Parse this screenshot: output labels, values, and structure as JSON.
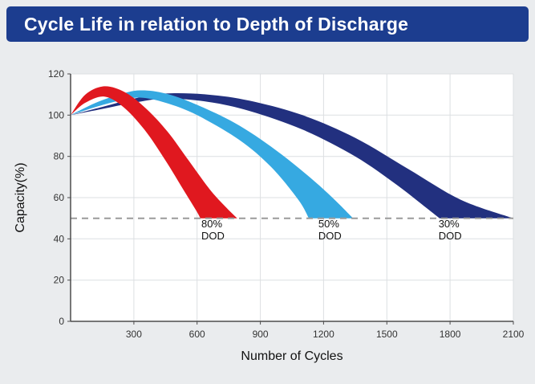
{
  "header": {
    "title": "Cycle Life in relation to Depth of Discharge",
    "bg_color": "#1c3d8f",
    "text_color": "#ffffff"
  },
  "page": {
    "bg_color": "#eaecee"
  },
  "chart_data": {
    "type": "area",
    "title": "Cycle Life in relation to Depth of Discharge",
    "xlabel": "Number of Cycles",
    "ylabel": "Capacity(%)",
    "xlim": [
      0,
      2100
    ],
    "ylim": [
      0,
      120
    ],
    "xticks": [
      300,
      600,
      900,
      1200,
      1500,
      1800,
      2100
    ],
    "yticks": [
      0,
      20,
      40,
      60,
      80,
      100,
      120
    ],
    "grid": true,
    "plot_bg": "#ffffff",
    "grid_color": "#dcdfe2",
    "axis_color": "#4d4d4d",
    "reference_line": {
      "y": 50,
      "style": "dashed",
      "color": "#9b9b9b"
    },
    "series": [
      {
        "name": "80% DOD",
        "color": "#e0181f",
        "top": [
          [
            0,
            100
          ],
          [
            70,
            110
          ],
          [
            160,
            114
          ],
          [
            260,
            111
          ],
          [
            360,
            103
          ],
          [
            460,
            92
          ],
          [
            560,
            78
          ],
          [
            660,
            64
          ],
          [
            740,
            55
          ],
          [
            790,
            50
          ]
        ],
        "bottom": [
          [
            0,
            100
          ],
          [
            70,
            106
          ],
          [
            160,
            109
          ],
          [
            250,
            104
          ],
          [
            350,
            93
          ],
          [
            450,
            78
          ],
          [
            540,
            63
          ],
          [
            600,
            53
          ],
          [
            615,
            50
          ]
        ]
      },
      {
        "name": "50% DOD",
        "color": "#36a9e1",
        "top": [
          [
            0,
            100
          ],
          [
            120,
            106
          ],
          [
            230,
            110
          ],
          [
            330,
            112
          ],
          [
            450,
            110.5
          ],
          [
            600,
            105
          ],
          [
            800,
            95
          ],
          [
            1000,
            81
          ],
          [
            1200,
            64
          ],
          [
            1340,
            50
          ]
        ],
        "bottom": [
          [
            0,
            100
          ],
          [
            120,
            104
          ],
          [
            230,
            107
          ],
          [
            330,
            108.5
          ],
          [
            450,
            106
          ],
          [
            600,
            100
          ],
          [
            800,
            88
          ],
          [
            950,
            75
          ],
          [
            1080,
            59
          ],
          [
            1130,
            50
          ]
        ]
      },
      {
        "name": "30% DOD",
        "color": "#22307f",
        "top": [
          [
            0,
            100
          ],
          [
            150,
            104
          ],
          [
            300,
            108
          ],
          [
            450,
            110.5
          ],
          [
            650,
            110
          ],
          [
            850,
            107
          ],
          [
            1100,
            100
          ],
          [
            1350,
            89
          ],
          [
            1600,
            74
          ],
          [
            1850,
            59
          ],
          [
            2100,
            50
          ]
        ],
        "bottom": [
          [
            0,
            100
          ],
          [
            150,
            103
          ],
          [
            300,
            106
          ],
          [
            450,
            108
          ],
          [
            650,
            106.5
          ],
          [
            850,
            102
          ],
          [
            1100,
            93
          ],
          [
            1350,
            80
          ],
          [
            1550,
            66
          ],
          [
            1700,
            54
          ],
          [
            1750,
            50
          ]
        ]
      }
    ],
    "annotations": [
      {
        "lines": [
          "80%",
          "DOD"
        ],
        "x": 620,
        "y": 45.5
      },
      {
        "lines": [
          "50%",
          "DOD"
        ],
        "x": 1175,
        "y": 45.5
      },
      {
        "lines": [
          "30%",
          "DOD"
        ],
        "x": 1745,
        "y": 45.5
      }
    ],
    "legend": {
      "show": false
    }
  }
}
